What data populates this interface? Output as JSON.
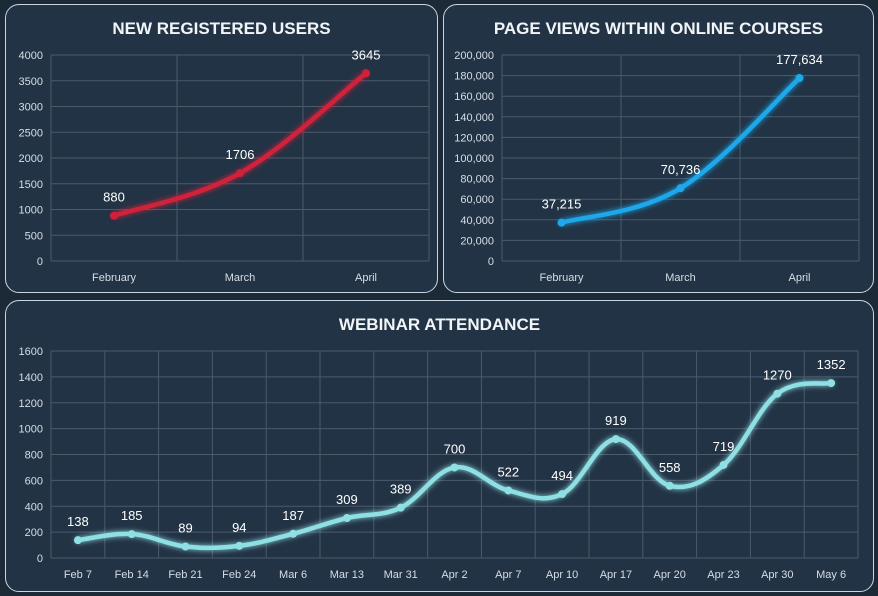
{
  "chart_data": [
    {
      "id": "registered",
      "type": "line",
      "title": "NEW REGISTERED USERS",
      "categories": [
        "February",
        "March",
        "April"
      ],
      "values": [
        880,
        1706,
        3645
      ],
      "labels": [
        "880",
        "1706",
        "3645"
      ],
      "ylim": [
        0,
        4000
      ],
      "yticks": [
        0,
        500,
        1000,
        1500,
        2000,
        2500,
        3000,
        3500,
        4000
      ],
      "ytick_labels": [
        "0",
        "500",
        "1000",
        "1500",
        "2000",
        "2500",
        "3000",
        "3500",
        "4000"
      ],
      "xlabel": "",
      "ylabel": "",
      "grid": true,
      "color": "#d0203a"
    },
    {
      "id": "pageviews",
      "type": "line",
      "title": "PAGE VIEWS WITHIN ONLINE COURSES",
      "categories": [
        "February",
        "March",
        "April"
      ],
      "values": [
        37215,
        70736,
        177634
      ],
      "labels": [
        "37,215",
        "70,736",
        "177,634"
      ],
      "ylim": [
        0,
        200000
      ],
      "yticks": [
        0,
        20000,
        40000,
        60000,
        80000,
        100000,
        120000,
        140000,
        160000,
        180000,
        200000
      ],
      "ytick_labels": [
        "0",
        "20,000",
        "40,000",
        "60,000",
        "80,000",
        "100,000",
        "120,000",
        "140,000",
        "160,000",
        "180,000",
        "200,000"
      ],
      "xlabel": "",
      "ylabel": "",
      "grid": true,
      "color": "#1fa8ea"
    },
    {
      "id": "webinar",
      "type": "line",
      "title": "WEBINAR ATTENDANCE",
      "categories": [
        "Feb 7",
        "Feb 14",
        "Feb 21",
        "Feb 24",
        "Mar 6",
        "Mar 13",
        "Mar 31",
        "Apr 2",
        "Apr 7",
        "Apr 10",
        "Apr 17",
        "Apr 20",
        "Apr 23",
        "Apr 30",
        "May 6"
      ],
      "values": [
        138,
        185,
        89,
        94,
        187,
        309,
        389,
        700,
        522,
        494,
        919,
        558,
        719,
        1270,
        1352
      ],
      "labels": [
        "138",
        "185",
        "89",
        "94",
        "187",
        "309",
        "389",
        "700",
        "522",
        "494",
        "919",
        "558",
        "719",
        "1270",
        "1352"
      ],
      "ylim": [
        0,
        1600
      ],
      "yticks": [
        0,
        200,
        400,
        600,
        800,
        1000,
        1200,
        1400,
        1600
      ],
      "ytick_labels": [
        "0",
        "200",
        "400",
        "600",
        "800",
        "1000",
        "1200",
        "1400",
        "1600"
      ],
      "xlabel": "",
      "ylabel": "",
      "grid": true,
      "color": "#8fe0e4"
    }
  ]
}
